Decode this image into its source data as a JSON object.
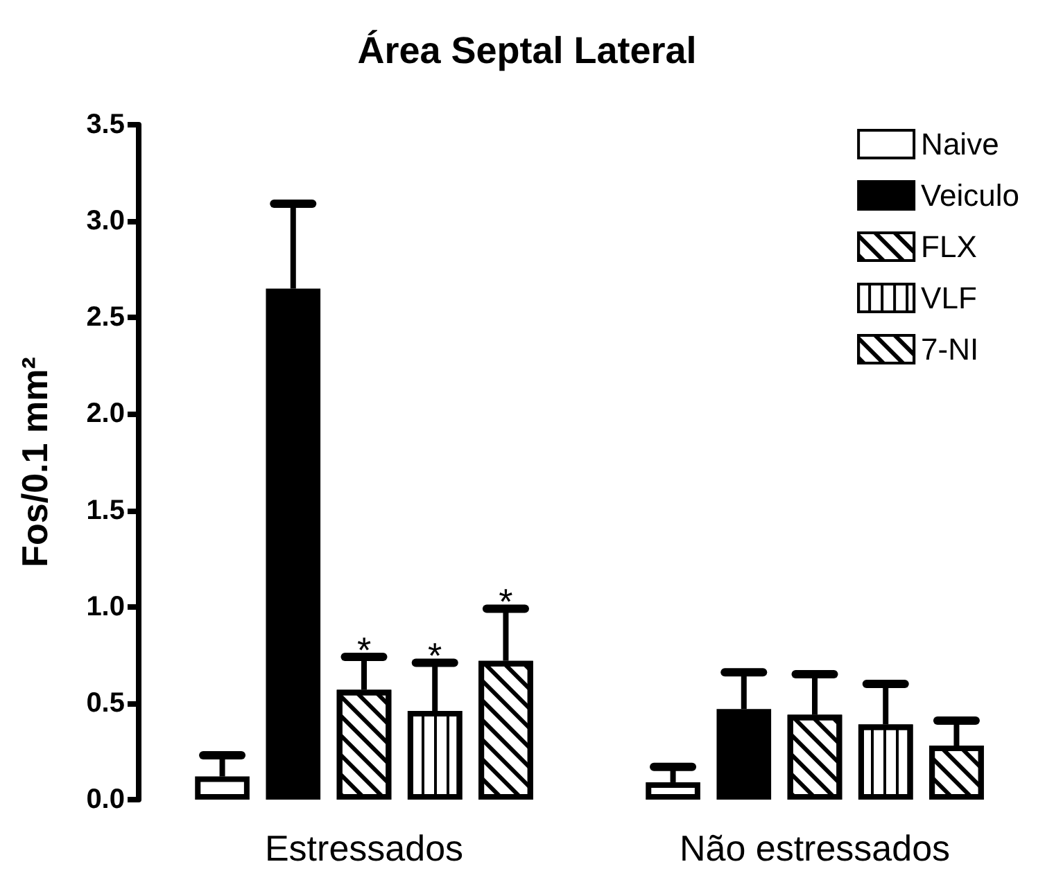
{
  "chart_data": {
    "type": "bar",
    "title": "Área Septal Lateral",
    "ylabel": "Fos/0.1 mm²",
    "categories": [
      "Estressados",
      "Não estressados"
    ],
    "ylim": [
      0,
      3.5
    ],
    "yticks": [
      {
        "value": 0,
        "label": "0.0"
      },
      0.5,
      {
        "value": 1,
        "label": "1.0"
      },
      1.5,
      {
        "value": 2,
        "label": "2.0"
      },
      2.5,
      {
        "value": 3,
        "label": "3.0"
      },
      3.5
    ],
    "grid": false,
    "legend": "top right",
    "series": [
      {
        "name": "Naive",
        "color": "#ffffff",
        "values": [
          0.12,
          0.09
        ],
        "errors": [
          [
            0.12,
            0.23
          ],
          [
            0.09,
            0.17
          ]
        ]
      },
      {
        "name": "Veiculo",
        "color": "#000000",
        "values": [
          2.65,
          0.47
        ],
        "errors": [
          [
            2.65,
            3.09
          ],
          [
            0.47,
            0.66
          ]
        ]
      },
      {
        "name": "FLX",
        "color": "#ffffff",
        "values": [
          0.57,
          0.44
        ],
        "errors": [
          [
            0.57,
            0.74
          ],
          [
            0.44,
            0.65
          ]
        ],
        "value_labels": [
          "*",
          null
        ]
      },
      {
        "name": "VLF",
        "color": "#ffffff",
        "values": [
          0.46,
          0.39
        ],
        "errors": [
          [
            0.46,
            0.71
          ],
          [
            0.39,
            0.6
          ]
        ],
        "value_labels": [
          "*",
          null
        ]
      },
      {
        "name": "7-NI",
        "color": "#ffffff",
        "values": [
          0.72,
          0.28
        ],
        "errors": [
          [
            0.72,
            0.99
          ],
          [
            0.28,
            0.41
          ]
        ],
        "value_labels": [
          "*",
          null
        ]
      }
    ]
  }
}
